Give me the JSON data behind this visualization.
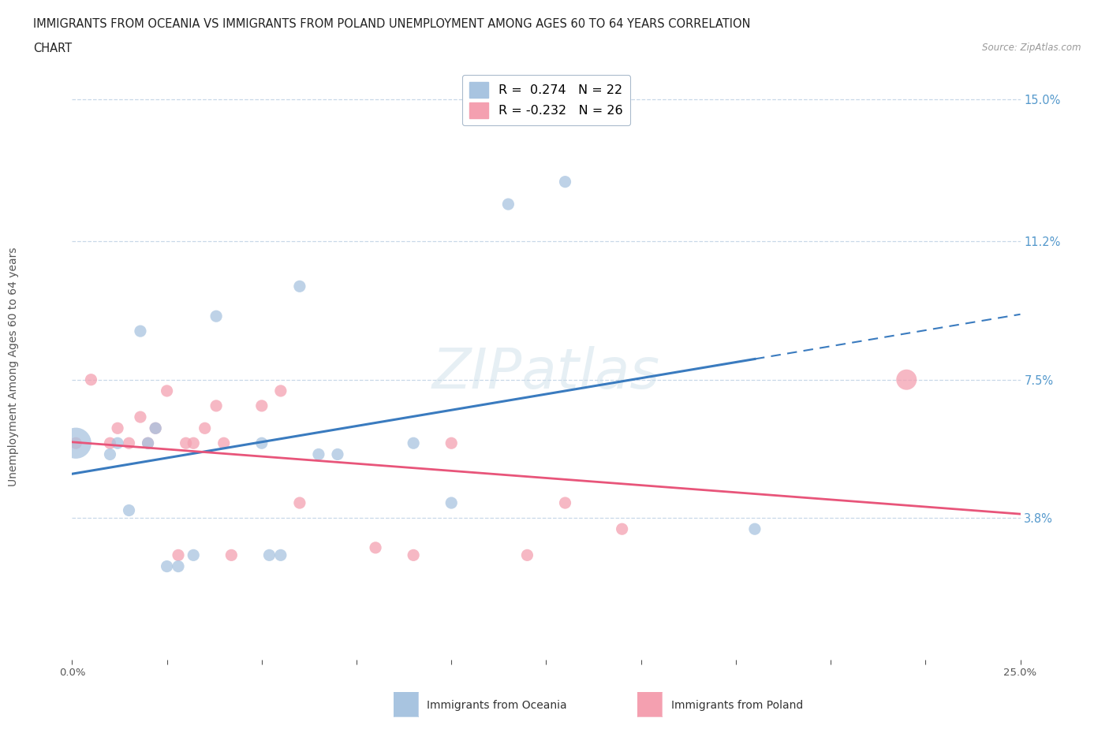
{
  "title_line1": "IMMIGRANTS FROM OCEANIA VS IMMIGRANTS FROM POLAND UNEMPLOYMENT AMONG AGES 60 TO 64 YEARS CORRELATION",
  "title_line2": "CHART",
  "source": "Source: ZipAtlas.com",
  "ylabel": "Unemployment Among Ages 60 to 64 years",
  "xlim": [
    0.0,
    0.25
  ],
  "ylim": [
    0.0,
    0.16
  ],
  "ytick_labels_right": [
    "15.0%",
    "11.2%",
    "7.5%",
    "3.8%"
  ],
  "ytick_vals_right": [
    0.15,
    0.112,
    0.075,
    0.038
  ],
  "R_oceania": 0.274,
  "N_oceania": 22,
  "R_poland": -0.232,
  "N_poland": 26,
  "color_oceania": "#a8c4e0",
  "color_poland": "#f4a0b0",
  "line_color_oceania": "#3a7bbf",
  "line_color_poland": "#e8557a",
  "oceania_x": [
    0.001,
    0.01,
    0.012,
    0.015,
    0.018,
    0.02,
    0.022,
    0.025,
    0.028,
    0.032,
    0.038,
    0.05,
    0.052,
    0.055,
    0.06,
    0.065,
    0.07,
    0.09,
    0.1,
    0.115,
    0.13,
    0.18
  ],
  "oceania_y": [
    0.058,
    0.055,
    0.058,
    0.04,
    0.088,
    0.058,
    0.062,
    0.025,
    0.025,
    0.028,
    0.092,
    0.058,
    0.028,
    0.028,
    0.1,
    0.055,
    0.055,
    0.058,
    0.042,
    0.122,
    0.128,
    0.035
  ],
  "oceania_size": [
    800,
    120,
    120,
    120,
    120,
    120,
    120,
    120,
    120,
    120,
    120,
    120,
    120,
    120,
    120,
    120,
    120,
    120,
    120,
    120,
    120,
    120
  ],
  "poland_x": [
    0.001,
    0.005,
    0.01,
    0.012,
    0.015,
    0.018,
    0.02,
    0.022,
    0.025,
    0.028,
    0.03,
    0.032,
    0.035,
    0.038,
    0.04,
    0.042,
    0.05,
    0.055,
    0.06,
    0.08,
    0.09,
    0.1,
    0.12,
    0.13,
    0.145,
    0.22
  ],
  "poland_y": [
    0.058,
    0.075,
    0.058,
    0.062,
    0.058,
    0.065,
    0.058,
    0.062,
    0.072,
    0.028,
    0.058,
    0.058,
    0.062,
    0.068,
    0.058,
    0.028,
    0.068,
    0.072,
    0.042,
    0.03,
    0.028,
    0.058,
    0.028,
    0.042,
    0.035,
    0.075
  ],
  "poland_size": [
    120,
    120,
    120,
    120,
    120,
    120,
    120,
    120,
    120,
    120,
    120,
    120,
    120,
    120,
    120,
    120,
    120,
    120,
    120,
    120,
    120,
    120,
    120,
    120,
    120,
    350
  ]
}
